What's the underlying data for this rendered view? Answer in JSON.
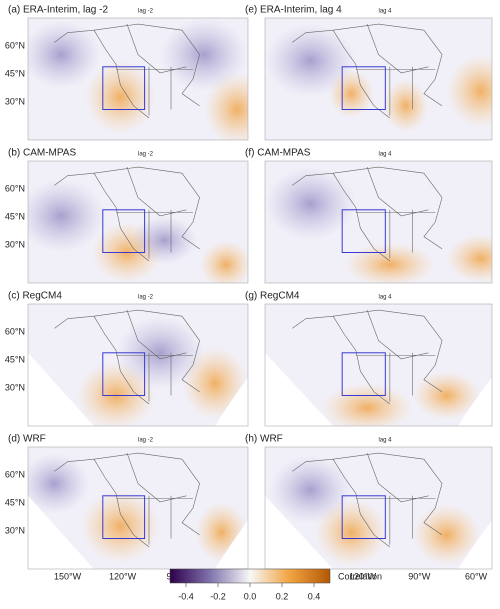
{
  "panels": [
    {
      "title": "(a) ERA-Interim, lag -2",
      "lag": "lag -2"
    },
    {
      "title": "(e) ERA-Interim, lag 4",
      "lag": "lag 4"
    },
    {
      "title": "(b) CAM-MPAS",
      "lag": "lag -2"
    },
    {
      "title": "(f) CAM-MPAS",
      "lag": "lag 4"
    },
    {
      "title": "(c) RegCM4",
      "lag": "lag -2"
    },
    {
      "title": "(g) RegCM4",
      "lag": "lag 4"
    },
    {
      "title": "(d) WRF",
      "lag": "lag -2"
    },
    {
      "title": "(h) WRF",
      "lag": "lag 4"
    }
  ],
  "lat_labels": [
    "60°N",
    "45°N",
    "30°N"
  ],
  "lon_labels": [
    "150°W",
    "120°W",
    "90°W",
    "60°W"
  ],
  "colorbar": {
    "label": "Correlation",
    "lim": [
      -0.5,
      0.5
    ],
    "ticks": [
      -0.4,
      -0.2,
      {
        "value": 0,
        "label": "0.0"
      },
      0.2,
      0.4
    ]
  }
}
